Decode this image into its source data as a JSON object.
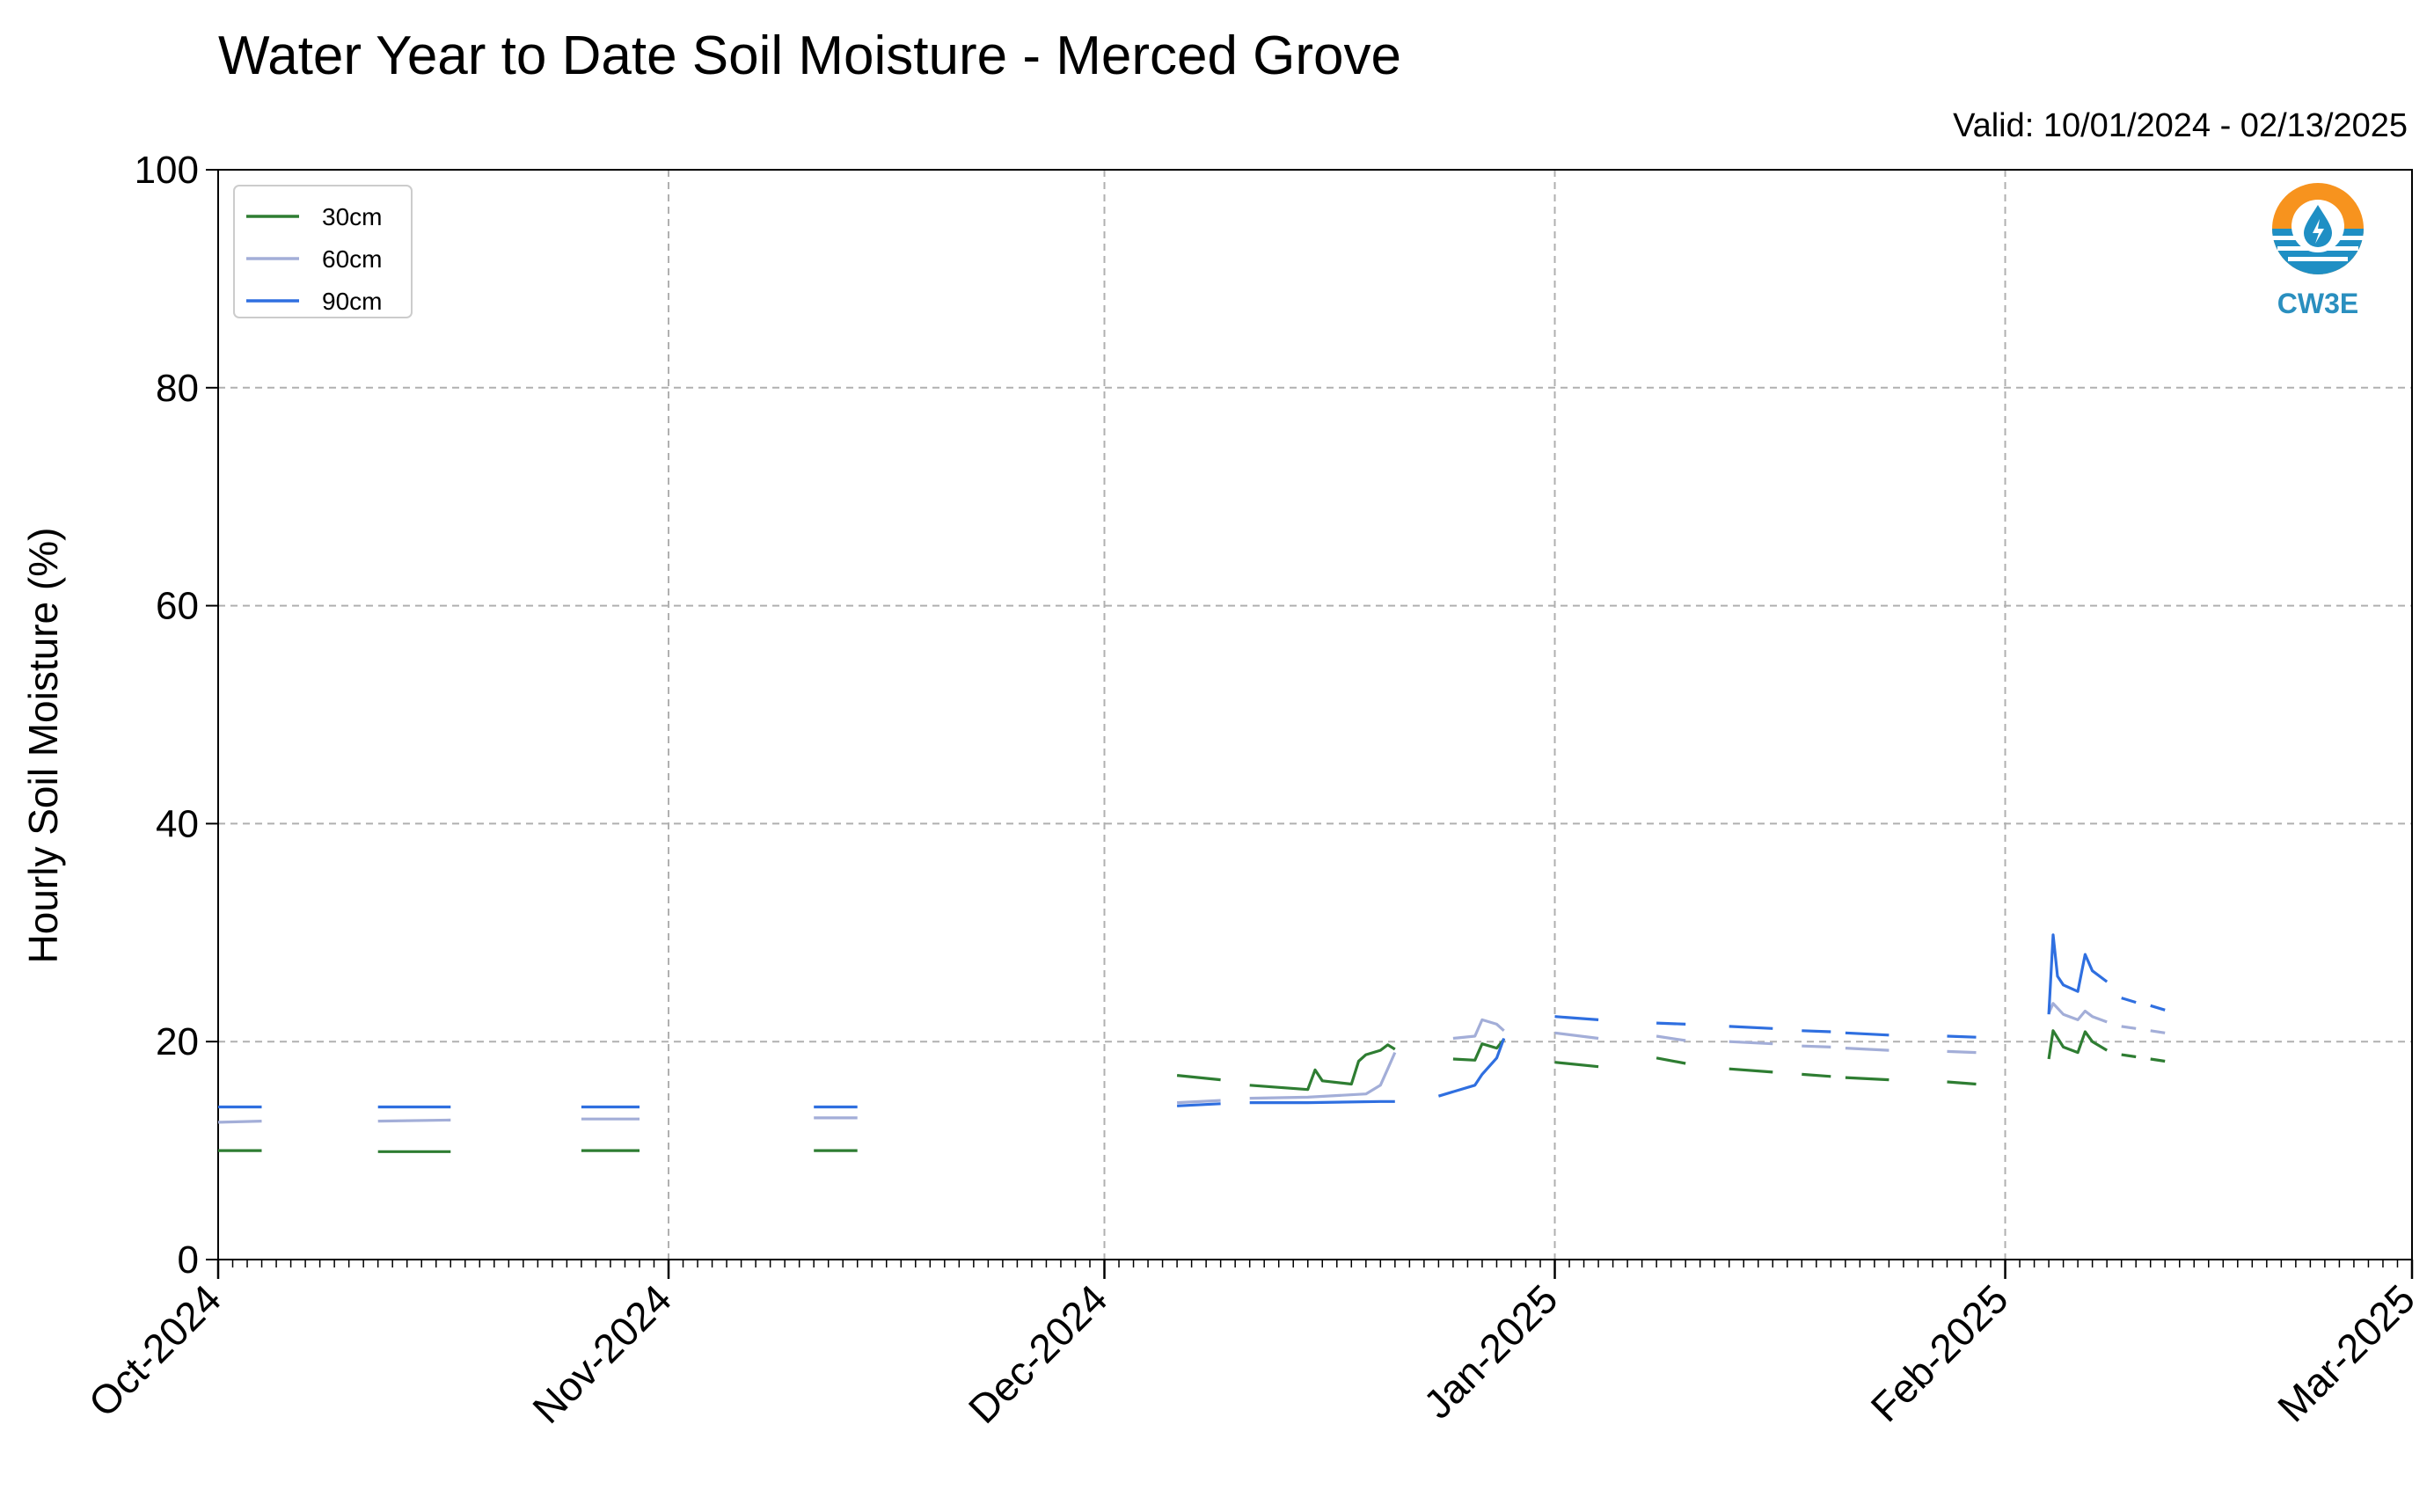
{
  "title": "Water Year to Date Soil Moisture - Merced Grove",
  "valid_label": "Valid: 10/01/2024 - 02/13/2025",
  "logo": {
    "icon": "cw3e-water-drop-logo",
    "text": "CW3E",
    "colors": [
      "#f7931e",
      "#1f8fc4"
    ]
  },
  "chart_data": {
    "type": "line",
    "ylabel": "Hourly Soil Moisture (%)",
    "ylim": [
      0,
      100
    ],
    "yticks": [
      0,
      20,
      40,
      60,
      80,
      100
    ],
    "xlim": [
      "2024-10-01",
      "2025-03-01"
    ],
    "xticks": [
      {
        "date": "2024-10-01",
        "label": "Oct-2024"
      },
      {
        "date": "2024-11-01",
        "label": "Nov-2024"
      },
      {
        "date": "2024-12-01",
        "label": "Dec-2024"
      },
      {
        "date": "2025-01-01",
        "label": "Jan-2025"
      },
      {
        "date": "2025-02-01",
        "label": "Feb-2025"
      },
      {
        "date": "2025-03-01",
        "label": "Mar-2025"
      }
    ],
    "grid": true,
    "legend_position": "top-left",
    "series": [
      {
        "name": "30cm",
        "color": "#2e7d32",
        "segments": [
          [
            [
              "2024-10-01",
              10.0
            ],
            [
              "2024-10-04",
              10.0
            ]
          ],
          [
            [
              "2024-10-12",
              9.9
            ],
            [
              "2024-10-17",
              9.9
            ]
          ],
          [
            [
              "2024-10-26",
              10.0
            ],
            [
              "2024-10-30",
              10.0
            ]
          ],
          [
            [
              "2024-11-11",
              10.0
            ],
            [
              "2024-11-14",
              10.0
            ]
          ],
          [
            [
              "2024-12-06",
              16.9
            ],
            [
              "2024-12-09",
              16.5
            ]
          ],
          [
            [
              "2024-12-11",
              16.0
            ],
            [
              "2024-12-15",
              15.6
            ],
            [
              "2024-12-15.5",
              17.4
            ],
            [
              "2024-12-16",
              16.4
            ],
            [
              "2024-12-18",
              16.1
            ],
            [
              "2024-12-18.5",
              18.2
            ],
            [
              "2024-12-19",
              18.8
            ],
            [
              "2024-12-20",
              19.2
            ],
            [
              "2024-12-20.5",
              19.7
            ],
            [
              "2024-12-21",
              19.3
            ]
          ],
          [
            [
              "2024-12-25",
              18.4
            ],
            [
              "2024-12-26.5",
              18.3
            ],
            [
              "2024-12-27",
              19.8
            ],
            [
              "2024-12-28",
              19.4
            ],
            [
              "2024-12-28.5",
              20.2
            ]
          ],
          [
            [
              "2025-01-01",
              18.1
            ],
            [
              "2025-01-04",
              17.7
            ]
          ],
          [
            [
              "2025-01-08",
              18.5
            ],
            [
              "2025-01-10",
              18.0
            ]
          ],
          [
            [
              "2025-01-13",
              17.5
            ],
            [
              "2025-01-16",
              17.2
            ]
          ],
          [
            [
              "2025-01-18",
              17.0
            ],
            [
              "2025-01-20",
              16.8
            ]
          ],
          [
            [
              "2025-01-21",
              16.7
            ],
            [
              "2025-01-24",
              16.5
            ]
          ],
          [
            [
              "2025-01-28",
              16.3
            ],
            [
              "2025-01-30",
              16.1
            ]
          ],
          [
            [
              "2025-02-04",
              18.4
            ],
            [
              "2025-02-04.3",
              21.0
            ],
            [
              "2025-02-05",
              19.5
            ],
            [
              "2025-02-06",
              19.0
            ],
            [
              "2025-02-06.5",
              20.9
            ],
            [
              "2025-02-07",
              20.0
            ],
            [
              "2025-02-08",
              19.2
            ]
          ],
          [
            [
              "2025-02-09",
              18.8
            ],
            [
              "2025-02-10",
              18.6
            ]
          ],
          [
            [
              "2025-02-11",
              18.4
            ],
            [
              "2025-02-12",
              18.2
            ]
          ]
        ]
      },
      {
        "name": "60cm",
        "color": "#a3aed8",
        "segments": [
          [
            [
              "2024-10-01",
              12.6
            ],
            [
              "2024-10-04",
              12.7
            ]
          ],
          [
            [
              "2024-10-12",
              12.7
            ],
            [
              "2024-10-17",
              12.8
            ]
          ],
          [
            [
              "2024-10-26",
              12.9
            ],
            [
              "2024-10-30",
              12.9
            ]
          ],
          [
            [
              "2024-11-11",
              13.0
            ],
            [
              "2024-11-14",
              13.0
            ]
          ],
          [
            [
              "2024-12-06",
              14.4
            ],
            [
              "2024-12-09",
              14.6
            ]
          ],
          [
            [
              "2024-12-11",
              14.8
            ],
            [
              "2024-12-15",
              14.9
            ],
            [
              "2024-12-19",
              15.2
            ],
            [
              "2024-12-20",
              16.0
            ],
            [
              "2024-12-20.5",
              17.5
            ],
            [
              "2024-12-21",
              19.0
            ]
          ],
          [
            [
              "2024-12-25",
              20.3
            ],
            [
              "2024-12-26.5",
              20.5
            ],
            [
              "2024-12-27",
              22.0
            ],
            [
              "2024-12-28",
              21.6
            ],
            [
              "2024-12-28.5",
              21.0
            ]
          ],
          [
            [
              "2025-01-01",
              20.8
            ],
            [
              "2025-01-04",
              20.3
            ]
          ],
          [
            [
              "2025-01-08",
              20.5
            ],
            [
              "2025-01-10",
              20.1
            ]
          ],
          [
            [
              "2025-01-13",
              20.0
            ],
            [
              "2025-01-16",
              19.8
            ]
          ],
          [
            [
              "2025-01-18",
              19.6
            ],
            [
              "2025-01-20",
              19.5
            ]
          ],
          [
            [
              "2025-01-21",
              19.4
            ],
            [
              "2025-01-24",
              19.2
            ]
          ],
          [
            [
              "2025-01-28",
              19.1
            ],
            [
              "2025-01-30",
              19.0
            ]
          ],
          [
            [
              "2025-02-04",
              22.6
            ],
            [
              "2025-02-04.3",
              23.5
            ],
            [
              "2025-02-05",
              22.5
            ],
            [
              "2025-02-06",
              22.0
            ],
            [
              "2025-02-06.5",
              22.8
            ],
            [
              "2025-02-07",
              22.3
            ],
            [
              "2025-02-08",
              21.8
            ]
          ],
          [
            [
              "2025-02-09",
              21.4
            ],
            [
              "2025-02-10",
              21.2
            ]
          ],
          [
            [
              "2025-02-11",
              21.0
            ],
            [
              "2025-02-12",
              20.8
            ]
          ]
        ]
      },
      {
        "name": "90cm",
        "color": "#2f6fe0",
        "segments": [
          [
            [
              "2024-10-01",
              14.0
            ],
            [
              "2024-10-04",
              14.0
            ]
          ],
          [
            [
              "2024-10-12",
              14.0
            ],
            [
              "2024-10-17",
              14.0
            ]
          ],
          [
            [
              "2024-10-26",
              14.0
            ],
            [
              "2024-10-30",
              14.0
            ]
          ],
          [
            [
              "2024-11-11",
              14.0
            ],
            [
              "2024-11-14",
              14.0
            ]
          ],
          [
            [
              "2024-12-06",
              14.1
            ],
            [
              "2024-12-09",
              14.3
            ]
          ],
          [
            [
              "2024-12-11",
              14.4
            ],
            [
              "2024-12-15",
              14.4
            ],
            [
              "2024-12-20",
              14.5
            ],
            [
              "2024-12-21",
              14.5
            ]
          ],
          [
            [
              "2024-12-24",
              15.0
            ],
            [
              "2024-12-26.5",
              16.0
            ],
            [
              "2024-12-27",
              17.0
            ],
            [
              "2024-12-28",
              18.5
            ],
            [
              "2024-12-28.5",
              20.3
            ]
          ],
          [
            [
              "2025-01-01",
              22.3
            ],
            [
              "2025-01-04",
              22.0
            ]
          ],
          [
            [
              "2025-01-08",
              21.7
            ],
            [
              "2025-01-10",
              21.6
            ]
          ],
          [
            [
              "2025-01-13",
              21.4
            ],
            [
              "2025-01-16",
              21.2
            ]
          ],
          [
            [
              "2025-01-18",
              21.0
            ],
            [
              "2025-01-20",
              20.9
            ]
          ],
          [
            [
              "2025-01-21",
              20.8
            ],
            [
              "2025-01-24",
              20.6
            ]
          ],
          [
            [
              "2025-01-28",
              20.5
            ],
            [
              "2025-01-30",
              20.4
            ]
          ],
          [
            [
              "2025-02-04",
              22.5
            ],
            [
              "2025-02-04.3",
              29.8
            ],
            [
              "2025-02-04.6",
              26.0
            ],
            [
              "2025-02-05",
              25.2
            ],
            [
              "2025-02-06",
              24.6
            ],
            [
              "2025-02-06.5",
              28.0
            ],
            [
              "2025-02-07",
              26.5
            ],
            [
              "2025-02-08",
              25.5
            ]
          ],
          [
            [
              "2025-02-09",
              24.0
            ],
            [
              "2025-02-10",
              23.6
            ]
          ],
          [
            [
              "2025-02-11",
              23.3
            ],
            [
              "2025-02-12",
              22.9
            ]
          ]
        ]
      }
    ]
  }
}
